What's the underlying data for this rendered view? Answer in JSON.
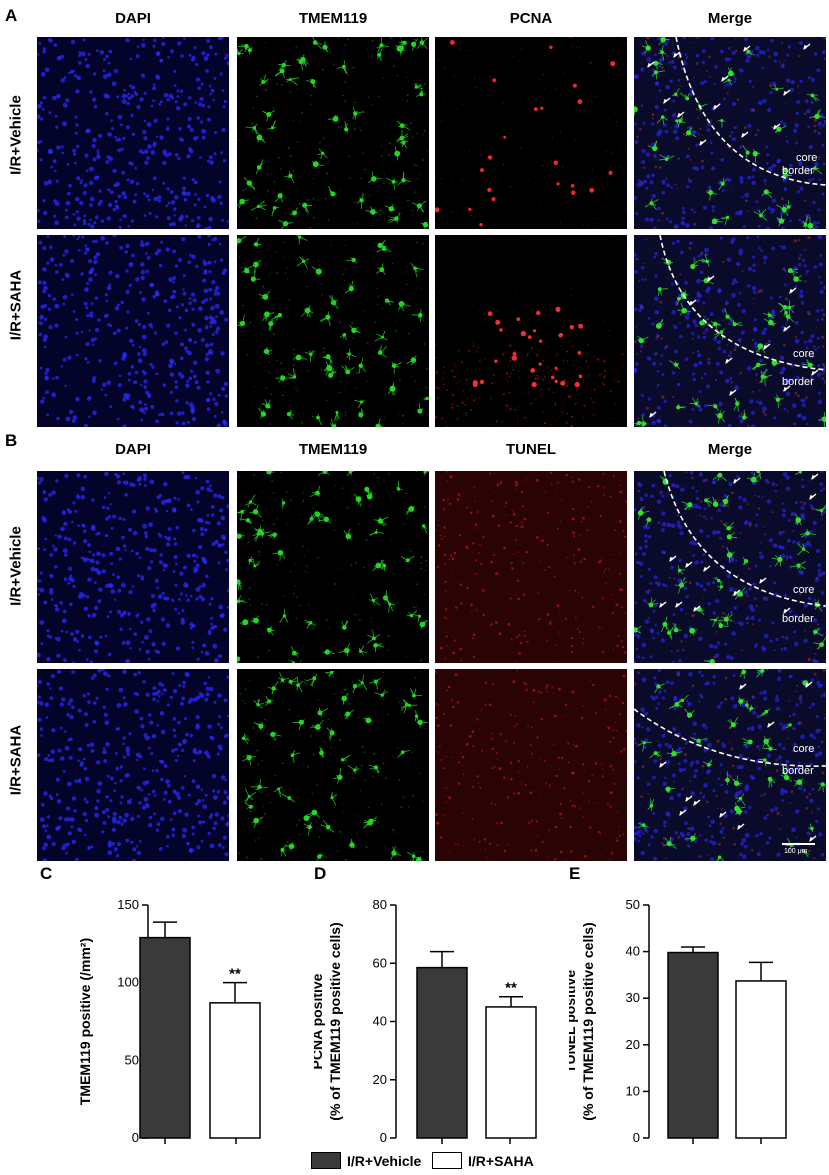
{
  "panel_letters": {
    "a": "A",
    "b": "B",
    "c": "C",
    "d": "D",
    "e": "E"
  },
  "section_a": {
    "columns": [
      "DAPI",
      "TMEM119",
      "PCNA",
      "Merge"
    ],
    "rows": [
      "I/R+Vehicle",
      "I/R+SAHA"
    ]
  },
  "section_b": {
    "columns": [
      "DAPI",
      "TMEM119",
      "TUNEL",
      "Merge"
    ],
    "rows": [
      "I/R+Vehicle",
      "I/R+SAHA"
    ]
  },
  "overlay_labels": {
    "core": "core",
    "border": "border",
    "scale_bar": "100 μm"
  },
  "colors": {
    "vehicle_bar": "#3a3a3a",
    "saha_bar": "#ffffff",
    "dapi": "#2a2aff",
    "tmem119": "#22d822",
    "pcna": "#ff2a2a",
    "tunel": "#e02020"
  },
  "legend": {
    "vehicle": "I/R+Vehicle",
    "saha": "I/R+SAHA"
  },
  "chart_data": [
    {
      "type": "bar",
      "panel": "C",
      "categories": [
        "I/R+Vehicle",
        "I/R+SAHA"
      ],
      "values": [
        129,
        87
      ],
      "errors": [
        10,
        13
      ],
      "significance": [
        "",
        "**"
      ],
      "ylabel": "TMEM119 positive (/mm²)",
      "ylabel_lines": [
        "TMEM119 positive (/mm²)"
      ],
      "ylim": [
        0,
        150
      ],
      "yticks": [
        0,
        50,
        100,
        150
      ]
    },
    {
      "type": "bar",
      "panel": "D",
      "categories": [
        "I/R+Vehicle",
        "I/R+SAHA"
      ],
      "values": [
        58.5,
        45
      ],
      "errors": [
        5.5,
        3.5
      ],
      "significance": [
        "",
        "**"
      ],
      "ylabel": "PCNA positive (% of TMEM119 positive cells)",
      "ylabel_lines": [
        "PCNA positive",
        "(% of TMEM119 positive cells)"
      ],
      "ylim": [
        0,
        80
      ],
      "yticks": [
        0,
        20,
        40,
        60,
        80
      ]
    },
    {
      "type": "bar",
      "panel": "E",
      "categories": [
        "I/R+Vehicle",
        "I/R+SAHA"
      ],
      "values": [
        39.8,
        33.7
      ],
      "errors": [
        1.2,
        4.0
      ],
      "significance": [
        "",
        ""
      ],
      "ylabel": "TUNEL positive (% of TMEM119 positive cells)",
      "ylabel_lines": [
        "TUNEL positive",
        "(% of TMEM119 positive cells)"
      ],
      "ylim": [
        0,
        50
      ],
      "yticks": [
        0,
        10,
        20,
        30,
        40,
        50
      ]
    }
  ]
}
